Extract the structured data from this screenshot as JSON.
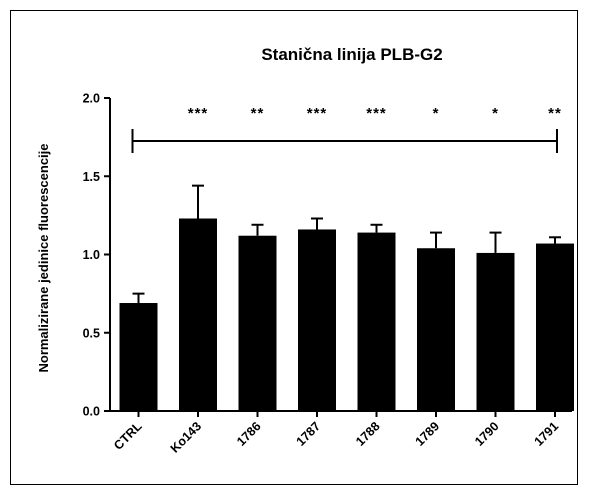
{
  "chart_data": {
    "type": "bar",
    "title": "Stanična linija PLB-G2",
    "xlabel": "",
    "ylabel": "Normalizirane jedinice fluorescencije",
    "ylim": [
      0,
      2.0
    ],
    "yticks": [
      "0.0",
      "0.5",
      "1.0",
      "1.5",
      "2.0"
    ],
    "ytick_values": [
      0,
      0.5,
      1.0,
      1.5,
      2.0
    ],
    "categories": [
      "CTRL",
      "Ko143",
      "1786",
      "1787",
      "1788",
      "1789",
      "1790",
      "1791"
    ],
    "values": [
      0.69,
      1.23,
      1.12,
      1.16,
      1.14,
      1.04,
      1.01,
      1.07
    ],
    "error": [
      0.06,
      0.21,
      0.07,
      0.07,
      0.05,
      0.1,
      0.13,
      0.04
    ],
    "significance": [
      "",
      "***",
      "**",
      "***",
      "***",
      "*",
      "*",
      "**"
    ],
    "comparison_bracket": {
      "from": "CTRL",
      "to": "1791"
    },
    "bar_color": "#000000",
    "grid": false
  }
}
